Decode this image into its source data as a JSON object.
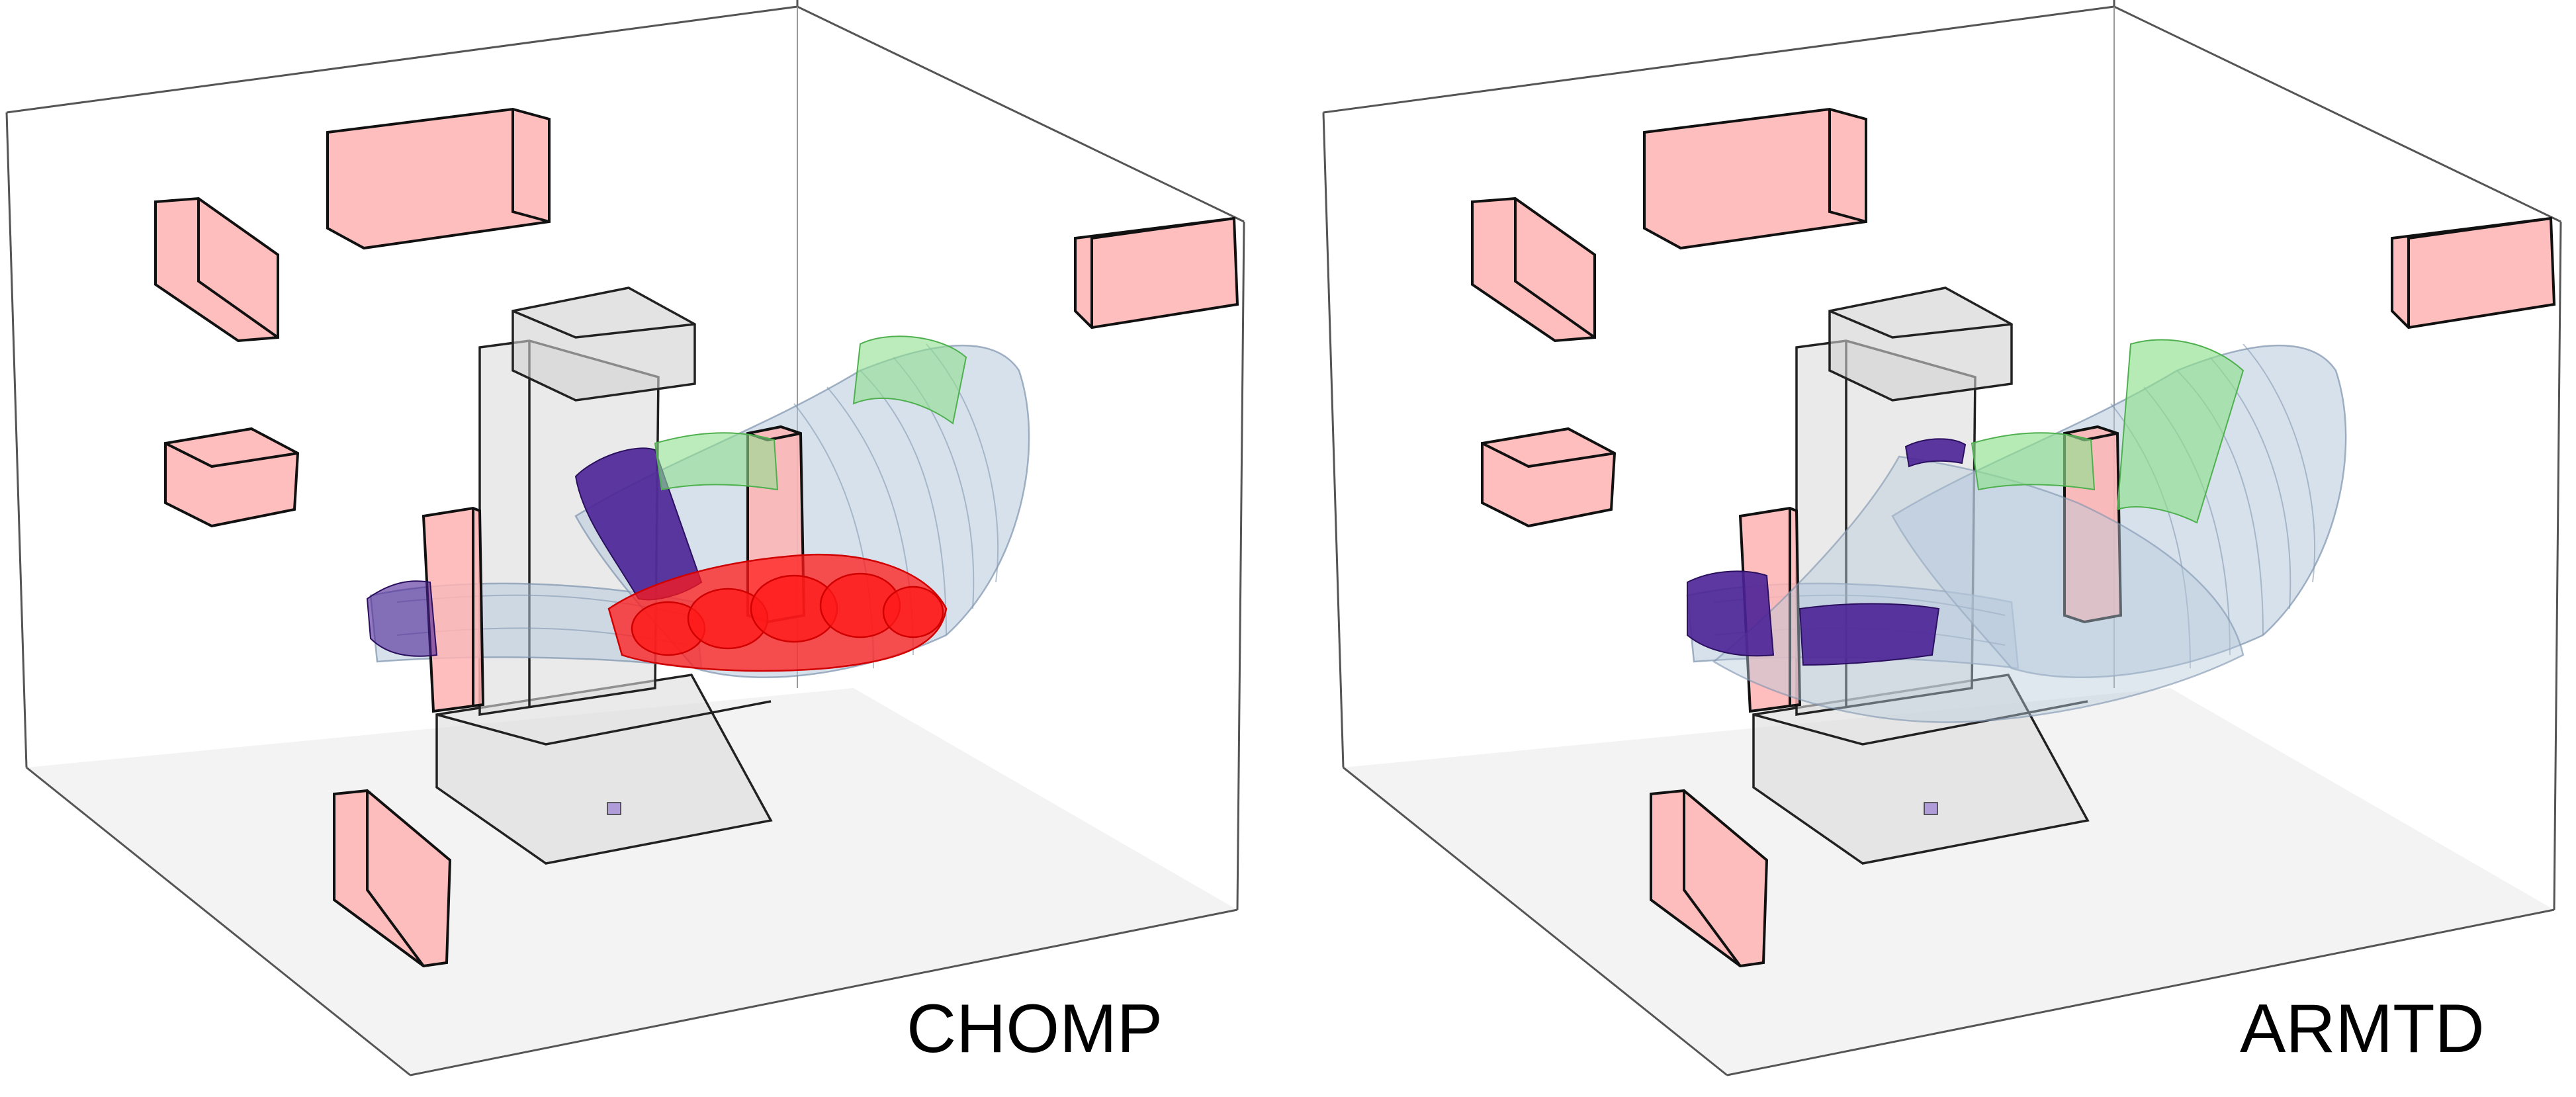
{
  "panels": [
    {
      "id": "left",
      "label": "CHOMP",
      "colors": {
        "obstacle_fill": "#ffb0b0",
        "robot_base_fill": "#e6e6e6",
        "arm_sweep": "#b7c9dc",
        "start_pose": "#4b2296",
        "goal_pose": "#8fe08f",
        "collision": "#ff1a1a",
        "floor": "#f2f2f2"
      },
      "collision_present": true
    },
    {
      "id": "right",
      "label": "ARMTD",
      "colors": {
        "obstacle_fill": "#ffb0b0",
        "robot_base_fill": "#e6e6e6",
        "arm_sweep": "#b7c9dc",
        "start_pose": "#4b2296",
        "goal_pose": "#8fe08f",
        "collision": "#ff1a1a",
        "floor": "#f2f2f2"
      },
      "collision_present": false
    }
  ]
}
